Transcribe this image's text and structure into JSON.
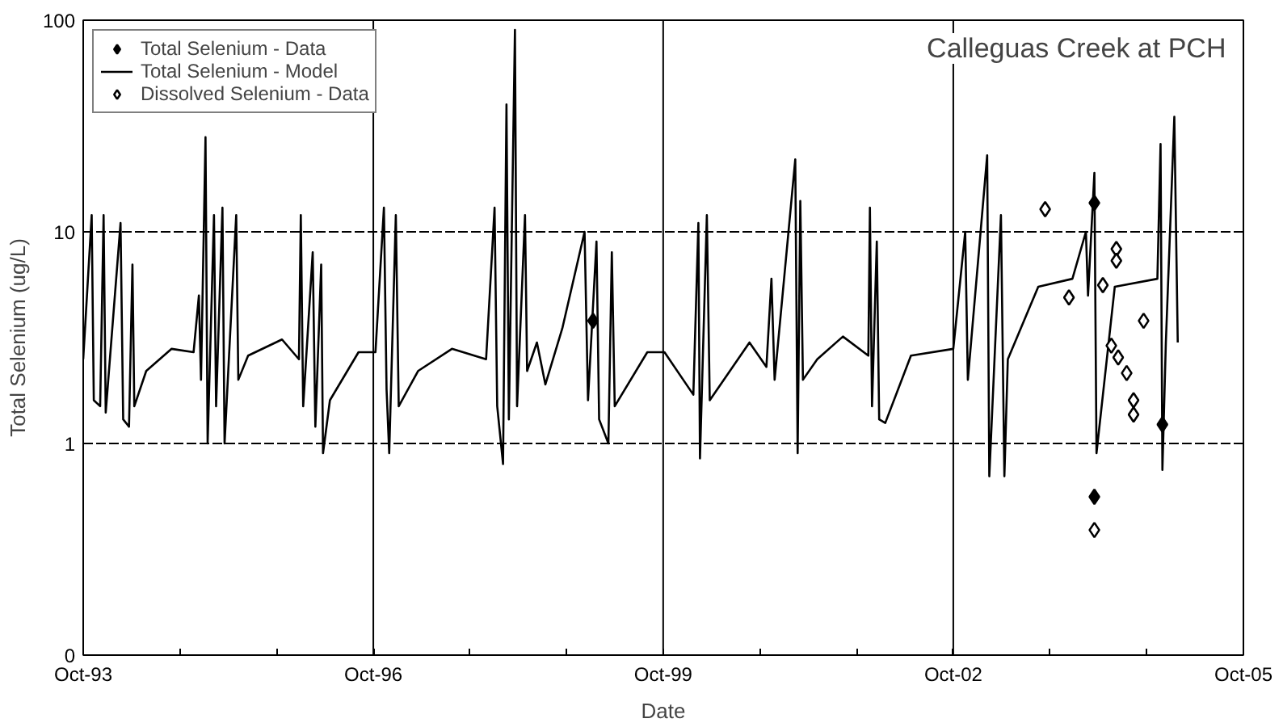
{
  "chart_data": {
    "type": "line",
    "title": "Calleguas Creek at PCH",
    "xlabel": "Date",
    "ylabel": "Total Selenium (ug/L)",
    "log": "y",
    "ylim": [
      0.1,
      100
    ],
    "yticks": [
      {
        "value": 0.1,
        "label": "0"
      },
      1,
      10,
      100
    ],
    "xlim": [
      "1993-10-01",
      "2005-10-01"
    ],
    "xticks": [
      {
        "value": "1993-10-01",
        "label": "Oct-93"
      },
      {
        "value": "1994-10-01",
        "label": null
      },
      {
        "value": "1995-10-01",
        "label": null
      },
      {
        "value": "1996-10-01",
        "label": "Oct-96"
      },
      {
        "value": "1997-10-01",
        "label": null
      },
      {
        "value": "1998-10-01",
        "label": null
      },
      {
        "value": "1999-10-01",
        "label": "Oct-99"
      },
      {
        "value": "2000-10-01",
        "label": null
      },
      {
        "value": "2001-10-01",
        "label": null
      },
      {
        "value": "2002-10-01",
        "label": "Oct-02"
      },
      {
        "value": "2003-10-01",
        "label": null
      },
      {
        "value": "2004-10-01",
        "label": null
      },
      {
        "value": "2005-10-01",
        "label": "Oct-05"
      }
    ],
    "grid": true,
    "legend": "top left",
    "series": [
      {
        "name": "Total Selenium - Data",
        "type": "scatter",
        "marker": "diamond",
        "color": "#000000",
        "x": [
          "1999-01-09",
          "2004-03-17",
          "2004-03-17",
          "2004-11-29"
        ],
        "values": [
          3.8,
          13.7,
          0.56,
          1.23
        ]
      },
      {
        "name": "Total Selenium - Model",
        "marker": "none",
        "line_style": "solid",
        "color": "#000000",
        "x": [
          "1993-10-01",
          "1993-11-02",
          "1993-11-10",
          "1993-12-04",
          "1993-12-17",
          "1993-12-25",
          "1994-02-19",
          "1994-03-01",
          "1994-03-23",
          "1994-04-05",
          "1994-04-12",
          "1994-05-27",
          "1994-08-31",
          "1994-11-22",
          "1994-12-12",
          "1994-12-20",
          "1995-01-06",
          "1995-01-14",
          "1995-02-07",
          "1995-02-15",
          "1995-03-11",
          "1995-03-19",
          "1995-05-02",
          "1995-05-10",
          "1995-06-16",
          "1995-10-22",
          "1995-12-25",
          "1996-01-01",
          "1996-01-10",
          "1996-02-15",
          "1996-02-25",
          "1996-03-18",
          "1996-03-25",
          "1996-04-20",
          "1996-08-06",
          "1996-10-09",
          "1996-11-10",
          "1996-11-20",
          "1996-11-30",
          "1996-12-25",
          "1997-01-05",
          "1997-03-19",
          "1997-07-25",
          "1997-12-01",
          "1998-01-02",
          "1998-01-12",
          "1998-02-03",
          "1998-02-16",
          "1998-02-25",
          "1998-03-20",
          "1998-03-28",
          "1998-04-27",
          "1998-05-05",
          "1998-06-11",
          "1998-07-13",
          "1998-09-15",
          "1998-12-08",
          "1998-12-21",
          "1999-01-22",
          "1999-02-01",
          "1999-03-08",
          "1999-03-21",
          "1999-04-01",
          "1999-08-02",
          "1999-10-06",
          "2000-01-23",
          "2000-02-11",
          "2000-02-17",
          "2000-03-14",
          "2000-03-25",
          "2000-08-22",
          "2000-10-25",
          "2000-11-13",
          "2000-11-25",
          "2001-02-11",
          "2001-02-20",
          "2001-03-02",
          "2001-03-12",
          "2001-05-05",
          "2001-08-10",
          "2001-11-14",
          "2001-11-20",
          "2001-11-28",
          "2001-12-16",
          "2001-12-25",
          "2002-01-17",
          "2002-04-24",
          "2002-10-01",
          "2002-11-15",
          "2002-11-25",
          "2003-02-06",
          "2003-02-14",
          "2003-03-30",
          "2003-04-12",
          "2003-04-25",
          "2003-08-18",
          "2003-12-25",
          "2004-02-14",
          "2004-02-22",
          "2004-03-17",
          "2004-03-25",
          "2004-06-02",
          "2004-11-10",
          "2004-11-22",
          "2004-11-29",
          "2004-12-12",
          "2005-01-13",
          "2005-01-26"
        ],
        "values": [
          2.5,
          12,
          1.6,
          1.5,
          12,
          1.4,
          11,
          1.3,
          1.2,
          7,
          1.5,
          2.2,
          2.8,
          2.7,
          5,
          2.0,
          28,
          1.0,
          12,
          1.5,
          13,
          1.0,
          12,
          2.0,
          2.6,
          3.1,
          2.5,
          12,
          1.5,
          8,
          1.2,
          7,
          0.9,
          1.6,
          2.7,
          2.7,
          13,
          1.8,
          0.9,
          12,
          1.5,
          2.2,
          2.8,
          2.5,
          13,
          1.5,
          0.8,
          40,
          1.3,
          90,
          1.5,
          12,
          2.2,
          3.0,
          1.9,
          3.5,
          10,
          1.6,
          9,
          1.3,
          1.0,
          8,
          1.5,
          2.7,
          2.7,
          1.7,
          11,
          0.85,
          12,
          1.6,
          3.0,
          2.3,
          6,
          2.0,
          22,
          0.9,
          14,
          2.0,
          2.5,
          3.2,
          2.6,
          13,
          1.5,
          9,
          1.3,
          1.25,
          2.6,
          2.8,
          10,
          2.0,
          23,
          0.7,
          12,
          0.7,
          2.5,
          5.5,
          6.0,
          10,
          5.0,
          19,
          0.9,
          5.5,
          6.0,
          26,
          0.75,
          3.0,
          35,
          3.0
        ]
      },
      {
        "name": "Dissolved Selenium - Data",
        "type": "scatter",
        "marker": "diamond",
        "color": "#000000",
        "x": [
          "2003-09-13",
          "2003-12-12",
          "2004-03-17",
          "2004-04-18",
          "2004-05-20",
          "2004-06-08",
          "2004-06-08",
          "2004-06-15",
          "2004-07-17",
          "2004-08-12",
          "2004-08-12",
          "2004-09-19"
        ],
        "values": [
          12.8,
          4.9,
          0.39,
          5.6,
          2.9,
          8.3,
          7.3,
          2.55,
          2.15,
          1.6,
          1.37,
          3.8
        ]
      }
    ]
  }
}
